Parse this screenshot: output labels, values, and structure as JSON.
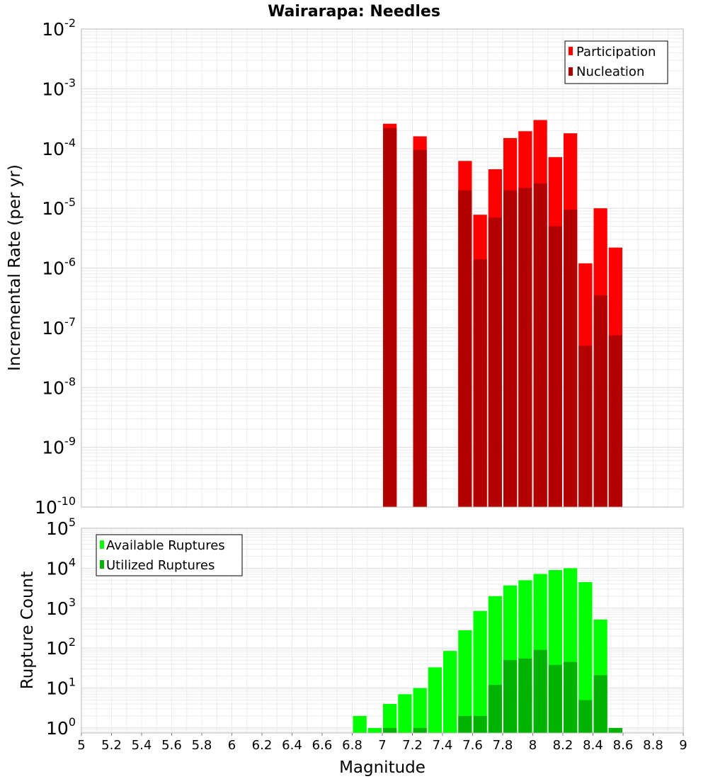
{
  "title": "Wairarapa: Needles",
  "colors": {
    "participation": "#ff0000",
    "nucleation": "#b30000",
    "available": "#00ff00",
    "utilized": "#00b300",
    "grid": "#e4e4e4",
    "frame": "#b8b8b8"
  },
  "chart_data": [
    {
      "type": "bar",
      "xlabel": "",
      "ylabel": "Incremental Rate (per yr)",
      "y_scale": "log",
      "ylim": [
        1e-10,
        0.01
      ],
      "xlim": [
        5,
        9
      ],
      "bin_width": 0.1,
      "y_ticks": [
        {
          "base": "10",
          "exp": "-10"
        },
        {
          "base": "10",
          "exp": "-9"
        },
        {
          "base": "10",
          "exp": "-8"
        },
        {
          "base": "10",
          "exp": "-7"
        },
        {
          "base": "10",
          "exp": "-6"
        },
        {
          "base": "10",
          "exp": "-5"
        },
        {
          "base": "10",
          "exp": "-4"
        },
        {
          "base": "10",
          "exp": "-3"
        },
        {
          "base": "10",
          "exp": "-2"
        }
      ],
      "legend_position": "top-right",
      "series": [
        {
          "name": "Participation",
          "x": [
            7.05,
            7.25,
            7.55,
            7.65,
            7.75,
            7.85,
            7.95,
            8.05,
            8.15,
            8.25,
            8.35,
            8.45,
            8.55
          ],
          "values": [
            0.00026,
            0.00016,
            6.2e-05,
            7.8e-06,
            4.5e-05,
            0.00015,
            0.000195,
            0.0003,
            7.2e-05,
            0.00018,
            1.2e-06,
            1e-05,
            2.2e-06
          ]
        },
        {
          "name": "Nucleation",
          "x": [
            7.05,
            7.25,
            7.55,
            7.65,
            7.75,
            7.85,
            7.95,
            8.05,
            8.15,
            8.25,
            8.35,
            8.45,
            8.55
          ],
          "values": [
            0.00022,
            9.5e-05,
            2e-05,
            1.4e-06,
            7e-06,
            2e-05,
            2.2e-05,
            2.6e-05,
            5e-06,
            9.5e-06,
            5e-08,
            3.5e-07,
            7.5e-08
          ]
        }
      ]
    },
    {
      "type": "bar",
      "xlabel": "Magnitude",
      "ylabel": "Rupture Count",
      "y_scale": "log",
      "ylim": [
        0.75,
        100000.0
      ],
      "xlim": [
        5,
        9
      ],
      "bin_width": 0.1,
      "y_ticks": [
        {
          "base": "10",
          "exp": "0"
        },
        {
          "base": "10",
          "exp": "1"
        },
        {
          "base": "10",
          "exp": "2"
        },
        {
          "base": "10",
          "exp": "3"
        },
        {
          "base": "10",
          "exp": "4"
        },
        {
          "base": "10",
          "exp": "5"
        }
      ],
      "x_ticks": [
        "5",
        "5.2",
        "5.4",
        "5.6",
        "5.8",
        "6",
        "6.2",
        "6.4",
        "6.6",
        "6.8",
        "7",
        "7.2",
        "7.4",
        "7.6",
        "7.8",
        "8",
        "8.2",
        "8.4",
        "8.6",
        "8.8",
        "9"
      ],
      "legend_position": "top-left",
      "series": [
        {
          "name": "Available Ruptures",
          "x": [
            6.85,
            6.95,
            7.05,
            7.15,
            7.25,
            7.35,
            7.45,
            7.55,
            7.65,
            7.75,
            7.85,
            7.95,
            8.05,
            8.15,
            8.25,
            8.35,
            8.45,
            8.55
          ],
          "values": [
            2,
            1,
            4,
            7,
            10,
            33,
            85,
            280,
            850,
            2000,
            3700,
            5000,
            7200,
            9000,
            10000,
            4500,
            520,
            1
          ]
        },
        {
          "name": "Utilized Ruptures",
          "x": [
            7.05,
            7.25,
            7.55,
            7.65,
            7.75,
            7.85,
            7.95,
            8.05,
            8.15,
            8.25,
            8.35,
            8.45,
            8.55
          ],
          "values": [
            1,
            1,
            2,
            2,
            12,
            50,
            55,
            90,
            38,
            45,
            5,
            21,
            1
          ]
        }
      ]
    }
  ]
}
